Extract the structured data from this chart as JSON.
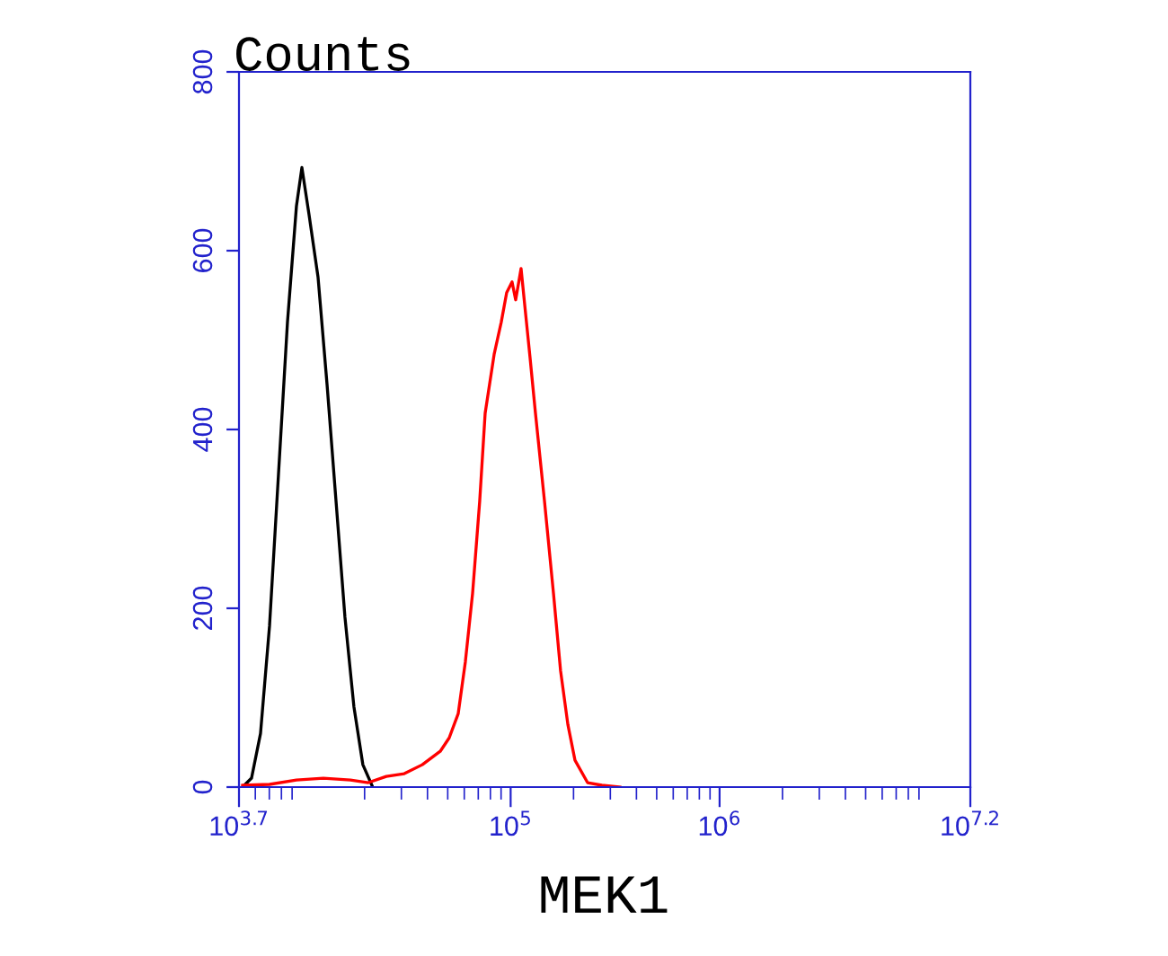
{
  "chart_data": {
    "type": "line",
    "ylabel": "Counts",
    "xlabel": "MEK1",
    "log": "x",
    "xlim": [
      5011.87,
      15848932
    ],
    "xticks": [
      {
        "value": 5011.87,
        "label": "10$^{3.7}$"
      },
      {
        "value": 100000,
        "label": "10$^{5}$"
      },
      {
        "value": 1000000,
        "label": "10$^{6}$"
      },
      {
        "value": 15848932,
        "label": "10$^{7.2}$"
      }
    ],
    "ylim": [
      0,
      800
    ],
    "yticks": [
      0,
      200,
      400,
      600,
      800
    ],
    "grid": false,
    "series": [
      {
        "color": "#000000",
        "x": [
          5212,
          5754,
          6353,
          7015,
          7745,
          8551,
          9441,
          10025,
          10850,
          11980,
          13230,
          14600,
          16110,
          17780,
          19630,
          21680
        ],
        "values": [
          0,
          10,
          60,
          180,
          350,
          520,
          650,
          693,
          640,
          570,
          450,
          320,
          190,
          90,
          25,
          2
        ]
      },
      {
        "color": "#ff0000",
        "x": [
          5212,
          7015,
          9441,
          12700,
          17100,
          20840,
          25410,
          30970,
          37760,
          46030,
          50810,
          56100,
          60710,
          65770,
          71120,
          75510,
          83370,
          90160,
          95710,
          101600,
          105700,
          112200,
          116700,
          123900,
          131500,
          145200,
          160300,
          173400,
          187900,
          203200,
          233400,
          273500,
          333400
        ],
        "values": [
          2,
          3,
          8,
          10,
          8,
          5,
          12,
          15,
          25,
          40,
          55,
          82,
          140,
          217,
          320,
          418,
          484,
          520,
          553,
          565,
          545,
          580,
          540,
          480,
          418,
          320,
          217,
          130,
          70,
          30,
          5,
          2,
          0
        ]
      }
    ]
  }
}
